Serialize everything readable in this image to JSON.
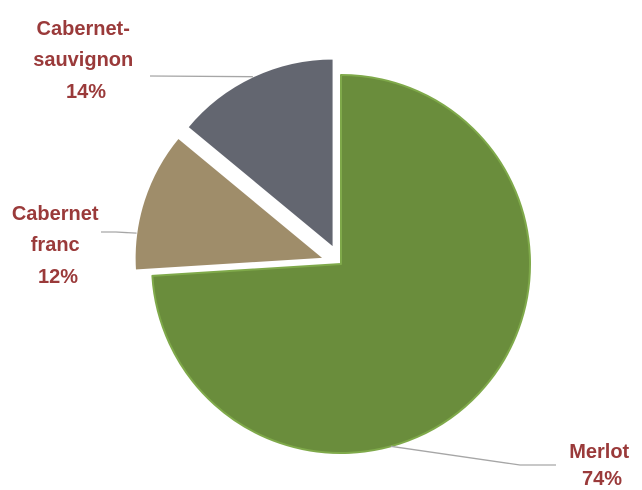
{
  "chart_data": {
    "type": "pie",
    "slices": [
      {
        "name": "Merlot",
        "value": 74,
        "percent_label": "74%",
        "color": "#6a8d3c",
        "edge": "#7fa94a",
        "exploded": false
      },
      {
        "name": "Cabernet franc",
        "value": 12,
        "percent_label": "12%",
        "color": "#9f8d6a",
        "edge": "#ffffff",
        "exploded": true
      },
      {
        "name": "Cabernet-sauvignon",
        "value": 14,
        "percent_label": "14%",
        "color": "#636670",
        "edge": "#ffffff",
        "exploded": true
      }
    ],
    "label_lines": [
      [
        "Merlot",
        "74%"
      ],
      [
        "Cabernet",
        "franc",
        "12%"
      ],
      [
        "Cabernet-",
        "sauvignon",
        "14%"
      ]
    ],
    "label_color": "#9a3a3a",
    "start_angle_deg": 0,
    "direction": "clockwise",
    "legend": "none"
  }
}
